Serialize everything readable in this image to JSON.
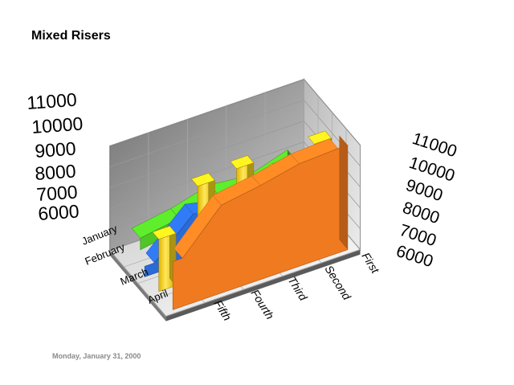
{
  "title": "Mixed Risers",
  "footer_date": "Monday, January 31, 2000",
  "chart_data": {
    "type": "3d-mixed",
    "title": "Mixed Risers",
    "x_categories": [
      "Fifth",
      "Fourth",
      "Third",
      "Second",
      "First"
    ],
    "depth_categories": [
      "January",
      "February",
      "March",
      "April"
    ],
    "y_ticks_left": [
      "11000",
      "10000",
      "9000",
      "8000",
      "7000",
      "6000"
    ],
    "y_ticks_right": [
      "11000",
      "10000",
      "9000",
      "8000",
      "7000",
      "6000"
    ],
    "ylim": [
      6000,
      11000
    ],
    "grid": true,
    "series": [
      {
        "depth": "January",
        "render": "area",
        "color": "#f07a20",
        "values": [
          8300,
          10200,
          10500,
          10900,
          11000
        ]
      },
      {
        "depth": "February",
        "render": "bar",
        "color": "#f2d51c",
        "values": [
          8500,
          10400,
          10600,
          9800,
          10500
        ]
      },
      {
        "depth": "March",
        "render": "area",
        "color": "#2b6bd6",
        "values": [
          6500,
          8200,
          7800,
          8000,
          7600
        ]
      },
      {
        "depth": "April",
        "render": "line-ribbon",
        "color": "#4fc625",
        "values": [
          6900,
          7200,
          7700,
          7500,
          8100
        ]
      }
    ]
  }
}
